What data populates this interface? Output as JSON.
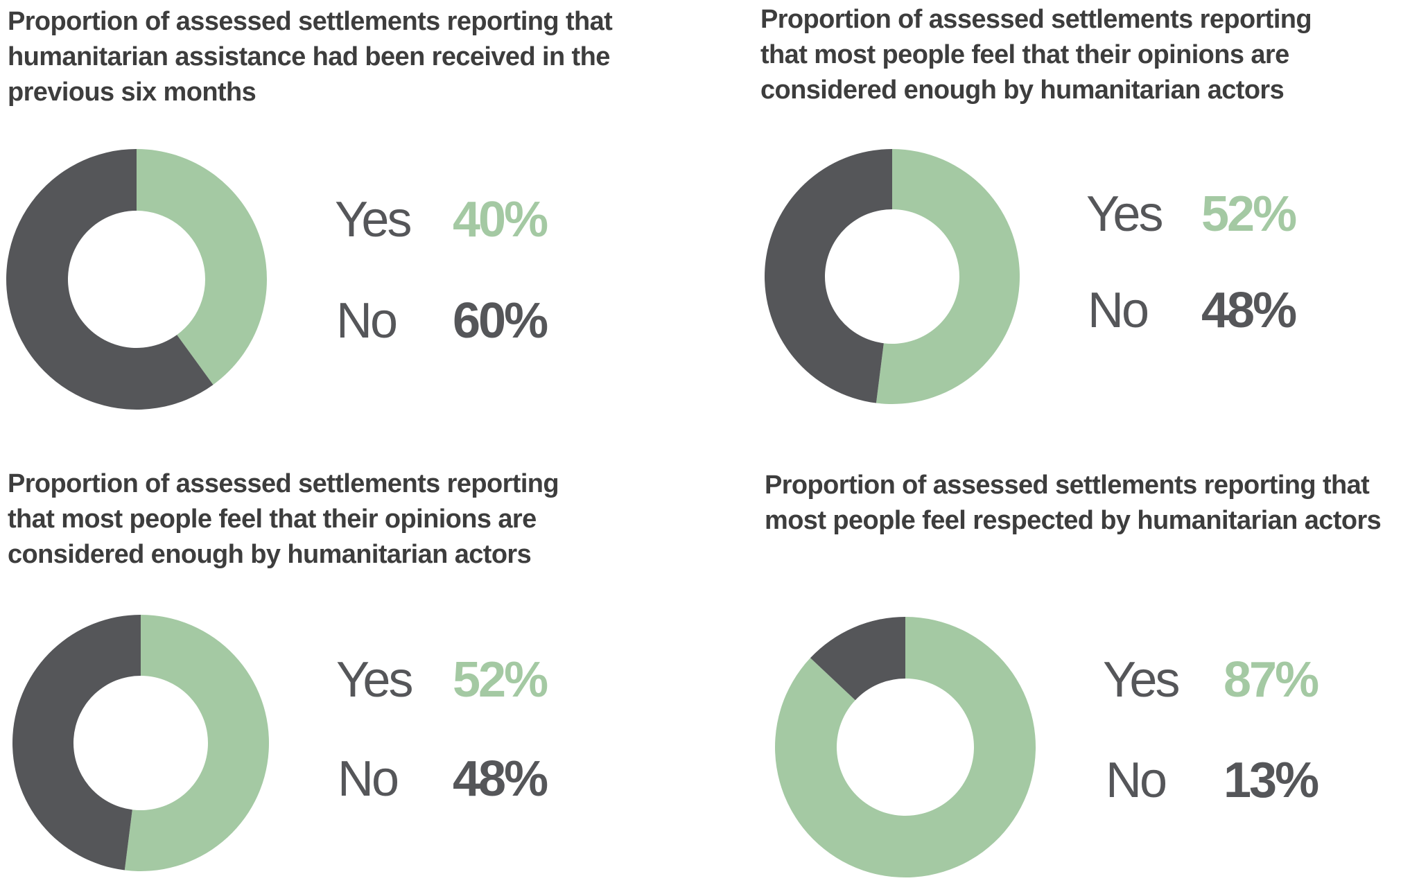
{
  "colors": {
    "yes": "#a4c9a3",
    "no": "#555659",
    "title": "#3d3d3d",
    "background": "#ffffff"
  },
  "chart_data": [
    {
      "type": "pie",
      "title_lines": [
        "Proportion of assessed settlements reporting that",
        "humanitarian assistance had been received in the",
        "previous six months"
      ],
      "categories": [
        "Yes",
        "No"
      ],
      "values": [
        40,
        60
      ],
      "value_labels": [
        "40%",
        "60%"
      ]
    },
    {
      "type": "pie",
      "title_lines": [
        "Proportion of assessed settlements reporting",
        "that most people feel that their opinions are",
        "considered enough by humanitarian actors"
      ],
      "categories": [
        "Yes",
        "No"
      ],
      "values": [
        52,
        48
      ],
      "value_labels": [
        "52%",
        "48%"
      ]
    },
    {
      "type": "pie",
      "title_lines": [
        "Proportion of assessed settlements reporting",
        "that most people feel that their opinions are",
        "considered enough by humanitarian actors"
      ],
      "categories": [
        "Yes",
        "No"
      ],
      "values": [
        52,
        48
      ],
      "value_labels": [
        "52%",
        "48%"
      ]
    },
    {
      "type": "pie",
      "title_lines": [
        "Proportion of assessed settlements reporting that",
        "most people feel respected by humanitarian actors"
      ],
      "categories": [
        "Yes",
        "No"
      ],
      "values": [
        87,
        13
      ],
      "value_labels": [
        "87%",
        "13%"
      ]
    }
  ]
}
